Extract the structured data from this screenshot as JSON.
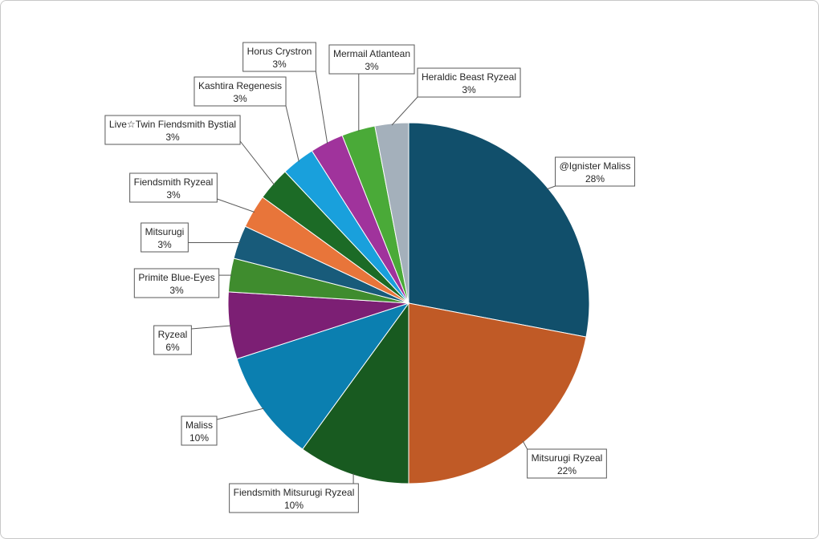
{
  "chart_data": {
    "type": "pie",
    "title": "",
    "slices": [
      {
        "name": "@Ignister Maliss",
        "value": 28,
        "label": "28%",
        "color": "#114f6b"
      },
      {
        "name": "Mitsurugi Ryzeal",
        "value": 22,
        "label": "22%",
        "color": "#c05a26"
      },
      {
        "name": "Fiendsmith Mitsurugi Ryzeal",
        "value": 10,
        "label": "10%",
        "color": "#185a20"
      },
      {
        "name": "Maliss",
        "value": 10,
        "label": "10%",
        "color": "#0b7fb0"
      },
      {
        "name": "Ryzeal",
        "value": 6,
        "label": "6%",
        "color": "#7c1f74"
      },
      {
        "name": "Primite Blue-Eyes",
        "value": 3,
        "label": "3%",
        "color": "#3f8c2e"
      },
      {
        "name": "Mitsurugi",
        "value": 3,
        "label": "3%",
        "color": "#185b7a"
      },
      {
        "name": "Fiendsmith Ryzeal",
        "value": 3,
        "label": "3%",
        "color": "#e8753a"
      },
      {
        "name": "Live☆Twin Fiendsmith Bystial",
        "value": 3,
        "label": "3%",
        "color": "#1c6b26"
      },
      {
        "name": "Kashtira Regenesis",
        "value": 3,
        "label": "3%",
        "color": "#19a0dc"
      },
      {
        "name": "Horus Crystron",
        "value": 3,
        "label": "3%",
        "color": "#a0339c"
      },
      {
        "name": "Mermail Atlantean",
        "value": 3,
        "label": "3%",
        "color": "#4aaa38"
      },
      {
        "name": "Heraldic Beast Ryzeal",
        "value": 3,
        "label": "3%",
        "color": "#a4b0bb"
      }
    ]
  }
}
